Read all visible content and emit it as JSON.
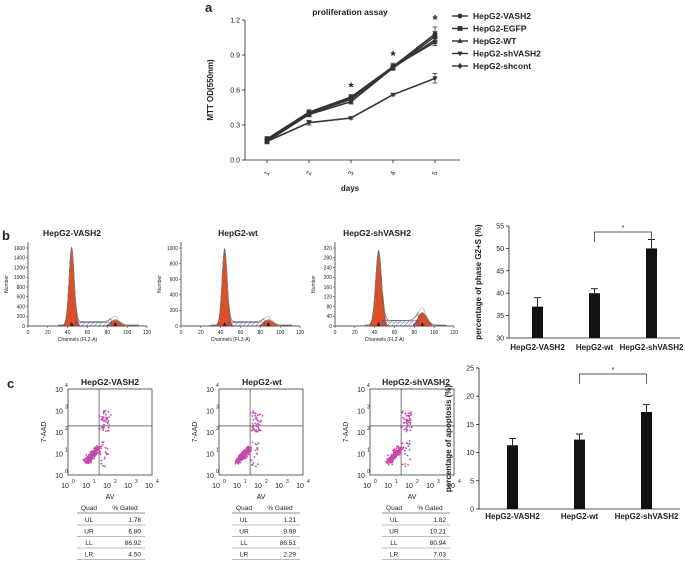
{
  "panel_labels": {
    "a": "a",
    "b": "b",
    "c": "c"
  },
  "panel_a": {
    "title": "proliferation assay",
    "ylabel": "MTT OD(550nm)",
    "xlabel": "days",
    "yticks": [
      "0.0",
      "0.3",
      "0.6",
      "0.9",
      "1.2"
    ],
    "xticks": [
      "1",
      "2",
      "3",
      "4",
      "5"
    ],
    "significance_mark": "*"
  },
  "panel_b": {
    "histograms": [
      {
        "title": "HepG2-VASH2",
        "ylabel": "Number",
        "xlabel": "Channels (FL2-A)",
        "yticks": [
          "0",
          "200",
          "400",
          "600",
          "800",
          "1000",
          "1200",
          "1400",
          "1600"
        ],
        "xticks": [
          "0",
          "20",
          "40",
          "60",
          "80",
          "100",
          "120"
        ]
      },
      {
        "title": "HepG2-wt",
        "ylabel": "Number",
        "xlabel": "Channels (FL2-A)",
        "yticks": [
          "0",
          "200",
          "400",
          "600",
          "800",
          "1000"
        ],
        "xticks": [
          "0",
          "20",
          "40",
          "60",
          "80",
          "100",
          "120"
        ]
      },
      {
        "title": "HepG2-shVASH2",
        "ylabel": "Number",
        "xlabel": "Channels (FL2-A)",
        "yticks": [
          "0",
          "40",
          "80",
          "120",
          "160",
          "200",
          "240",
          "280",
          "320"
        ],
        "xticks": [
          "0",
          "20",
          "40",
          "60",
          "80",
          "100",
          "120"
        ]
      }
    ]
  },
  "panel_c": {
    "scatters": [
      {
        "title": "HepG2-VASH2",
        "ylabel": "7-AAD",
        "xlabel": "AV",
        "tick_base": "10",
        "tick_exps": [
          "0",
          "1",
          "2",
          "3",
          "4"
        ],
        "table": {
          "headers": [
            "Quad",
            "% Gated"
          ],
          "rows": [
            [
              "UL",
              "1.78"
            ],
            [
              "UR",
              "6.80"
            ],
            [
              "LL",
              "86.92"
            ],
            [
              "LR",
              "4.50"
            ]
          ]
        }
      },
      {
        "title": "HepG2-wt",
        "ylabel": "7-AAD",
        "xlabel": "AV",
        "tick_base": "10",
        "tick_exps": [
          "0",
          "1",
          "2",
          "3",
          "4"
        ],
        "table": {
          "headers": [
            "Quad",
            "% Gated"
          ],
          "rows": [
            [
              "UL",
              "1.21"
            ],
            [
              "UR",
              "9.99"
            ],
            [
              "LL",
              "86.51"
            ],
            [
              "LR",
              "2.29"
            ]
          ]
        }
      },
      {
        "title": "HepG2-shVASH2",
        "ylabel": "7-AAD",
        "xlabel": "AV",
        "tick_base": "10",
        "tick_exps": [
          "0",
          "1",
          "2",
          "3",
          "4"
        ],
        "table": {
          "headers": [
            "Quad",
            "% Gated"
          ],
          "rows": [
            [
              "UL",
              "1.82"
            ],
            [
              "UR",
              "10.21"
            ],
            [
              "LL",
              "80.94"
            ],
            [
              "LR",
              "7.03"
            ]
          ]
        }
      }
    ]
  },
  "colors": {
    "flow_fill": "#d9502a",
    "scatter_dot": "#c44bb0",
    "hatch": "#3b4f8a"
  },
  "chart_data": [
    {
      "type": "line",
      "title": "proliferation assay",
      "xlabel": "days",
      "ylabel": "MTT OD(550nm)",
      "x": [
        1,
        2,
        3,
        4,
        5
      ],
      "ylim": [
        0,
        1.2
      ],
      "yticks": [
        0,
        0.3,
        0.6,
        0.9,
        1.2
      ],
      "series": [
        {
          "name": "HepG2-VASH2",
          "marker": "circle",
          "values": [
            0.18,
            0.41,
            0.54,
            0.8,
            1.08
          ],
          "errors": [
            0.02,
            0.02,
            0.02,
            0.03,
            0.06
          ]
        },
        {
          "name": "HepG2-EGFP",
          "marker": "square",
          "values": [
            0.17,
            0.4,
            0.53,
            0.79,
            1.06
          ],
          "errors": [
            0.02,
            0.02,
            0.02,
            0.02,
            0.04
          ]
        },
        {
          "name": "HepG2-WT",
          "marker": "triangle-up",
          "values": [
            0.16,
            0.39,
            0.5,
            0.79,
            1.03
          ],
          "errors": [
            0.02,
            0.02,
            0.02,
            0.02,
            0.03
          ]
        },
        {
          "name": "HepG2-shVASH2",
          "marker": "triangle-down",
          "values": [
            0.16,
            0.32,
            0.36,
            0.56,
            0.7
          ],
          "errors": [
            0.02,
            0.02,
            0.01,
            0.01,
            0.04
          ]
        },
        {
          "name": "HepG2-shcont",
          "marker": "diamond",
          "values": [
            0.16,
            0.4,
            0.52,
            0.8,
            1.01
          ],
          "errors": [
            0.02,
            0.02,
            0.02,
            0.02,
            0.03
          ]
        }
      ],
      "significance_days": [
        3,
        4,
        5
      ]
    },
    {
      "type": "bar",
      "ylabel": "percentage of phase G2+S (%)",
      "categories": [
        "HepG2-VASH2",
        "HepG2-wt",
        "HepG2-shVASH2"
      ],
      "values": [
        37,
        40,
        50
      ],
      "errors": [
        2,
        1,
        2
      ],
      "ylim": [
        30,
        55
      ],
      "yticks": [
        30,
        35,
        40,
        45,
        50,
        55
      ],
      "significance": {
        "between": [
          "HepG2-wt",
          "HepG2-shVASH2"
        ],
        "label": "*"
      }
    },
    {
      "type": "bar",
      "ylabel": "percentage of apoptosis (%)",
      "categories": [
        "HepG2-VASH2",
        "HepG2-wt",
        "HepG2-shVASH2"
      ],
      "values": [
        11.3,
        12.3,
        17.2
      ],
      "errors": [
        1.2,
        1.0,
        1.3
      ],
      "ylim": [
        0,
        25
      ],
      "yticks": [
        0,
        5,
        10,
        15,
        20,
        25
      ],
      "significance": {
        "between": [
          "HepG2-wt",
          "HepG2-shVASH2"
        ],
        "label": "*"
      }
    }
  ]
}
